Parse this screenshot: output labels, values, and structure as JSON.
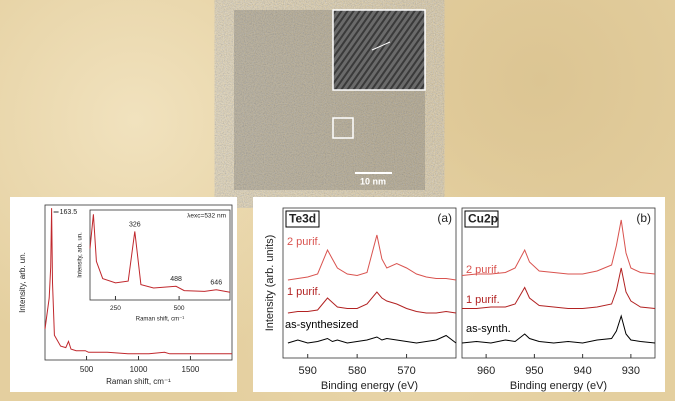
{
  "scale_bar": "10 nm",
  "chart_data": [
    {
      "type": "line",
      "x_label": "Raman shift, cm⁻¹",
      "y_label": "Intensity, arb. un.",
      "color": "#c0282d",
      "peak_label": 163.5,
      "x": [
        100,
        140,
        155,
        163.5,
        172,
        190,
        250,
        300,
        326,
        350,
        400,
        488,
        520,
        646,
        700,
        900,
        1100,
        1250,
        1300,
        1500,
        1700,
        1900
      ],
      "values": [
        20,
        40,
        60,
        98,
        50,
        16,
        9,
        8,
        12,
        7,
        6,
        6,
        5,
        5,
        5,
        4,
        4,
        5,
        4,
        4,
        4,
        4
      ],
      "xlim": [
        100,
        1900
      ],
      "ylim": [
        0,
        100
      ],
      "xticks": [
        500,
        1000,
        1500
      ]
    },
    {
      "type": "line",
      "x_label": "Raman shift, cm⁻¹",
      "y_label": "Intensity, arb. un.",
      "color": "#c0282d",
      "annotation": "λexc=532 nm",
      "peak_labels": [
        326,
        488,
        646
      ],
      "x": [
        150,
        163.5,
        175,
        200,
        250,
        300,
        326,
        350,
        400,
        488,
        520,
        600,
        646,
        700
      ],
      "values": [
        60,
        100,
        45,
        25,
        20,
        22,
        80,
        18,
        14,
        16,
        11,
        10,
        12,
        9
      ],
      "xlim": [
        150,
        700
      ],
      "ylim": [
        0,
        105
      ],
      "xticks": [
        250,
        500
      ]
    },
    {
      "type": "line",
      "title": "Te3d",
      "panel_label": "(a)",
      "x_label": "Binding energy (eV)",
      "y_label": "Intensity (arb. units)",
      "x": [
        594,
        592,
        590,
        588,
        586,
        585,
        584,
        582,
        580,
        578,
        576,
        575,
        574,
        572,
        570,
        568,
        566,
        564,
        562,
        560
      ],
      "series": [
        {
          "name": "2 purif.",
          "color": "#d9534f",
          "values": [
            52,
            53,
            54,
            56,
            72,
            66,
            60,
            56,
            55,
            57,
            82,
            66,
            60,
            63,
            60,
            56,
            54,
            53,
            53,
            52
          ]
        },
        {
          "name": "1 purif.",
          "color": "#b22222",
          "values": [
            30,
            31,
            31,
            32,
            40,
            37,
            34,
            33,
            33,
            36,
            44,
            40,
            38,
            36,
            33,
            31,
            30,
            30,
            31,
            30
          ]
        },
        {
          "name": "as-synthesized",
          "color": "#000000",
          "values": [
            10,
            12,
            10,
            11,
            13,
            11,
            12,
            10,
            11,
            12,
            14,
            12,
            13,
            12,
            11,
            10,
            11,
            12,
            15,
            10
          ]
        }
      ],
      "xlim": [
        595,
        560
      ],
      "ylim": [
        0,
        100
      ],
      "xticks": [
        590,
        580,
        570
      ]
    },
    {
      "type": "line",
      "title": "Cu2p",
      "panel_label": "(b)",
      "x_label": "Binding energy (eV)",
      "x": [
        965,
        962,
        959,
        956,
        954,
        952,
        951,
        949,
        946,
        943,
        940,
        937,
        934,
        933,
        932,
        931,
        930,
        928,
        925
      ],
      "series": [
        {
          "name": "2 purif.",
          "color": "#d9534f",
          "values": [
            55,
            56,
            56,
            57,
            60,
            72,
            64,
            58,
            57,
            56,
            56,
            58,
            62,
            75,
            92,
            70,
            60,
            57,
            56
          ]
        },
        {
          "name": "1 purif.",
          "color": "#b22222",
          "values": [
            33,
            33,
            34,
            34,
            36,
            47,
            40,
            35,
            34,
            33,
            33,
            34,
            36,
            45,
            60,
            44,
            38,
            34,
            33
          ]
        },
        {
          "name": "as-synth.",
          "color": "#000000",
          "values": [
            10,
            11,
            10,
            12,
            11,
            16,
            13,
            11,
            10,
            11,
            10,
            12,
            13,
            18,
            28,
            16,
            12,
            11,
            10
          ]
        }
      ],
      "xlim": [
        965,
        925
      ],
      "ylim": [
        0,
        100
      ],
      "xticks": [
        960,
        950,
        940,
        930
      ]
    }
  ]
}
